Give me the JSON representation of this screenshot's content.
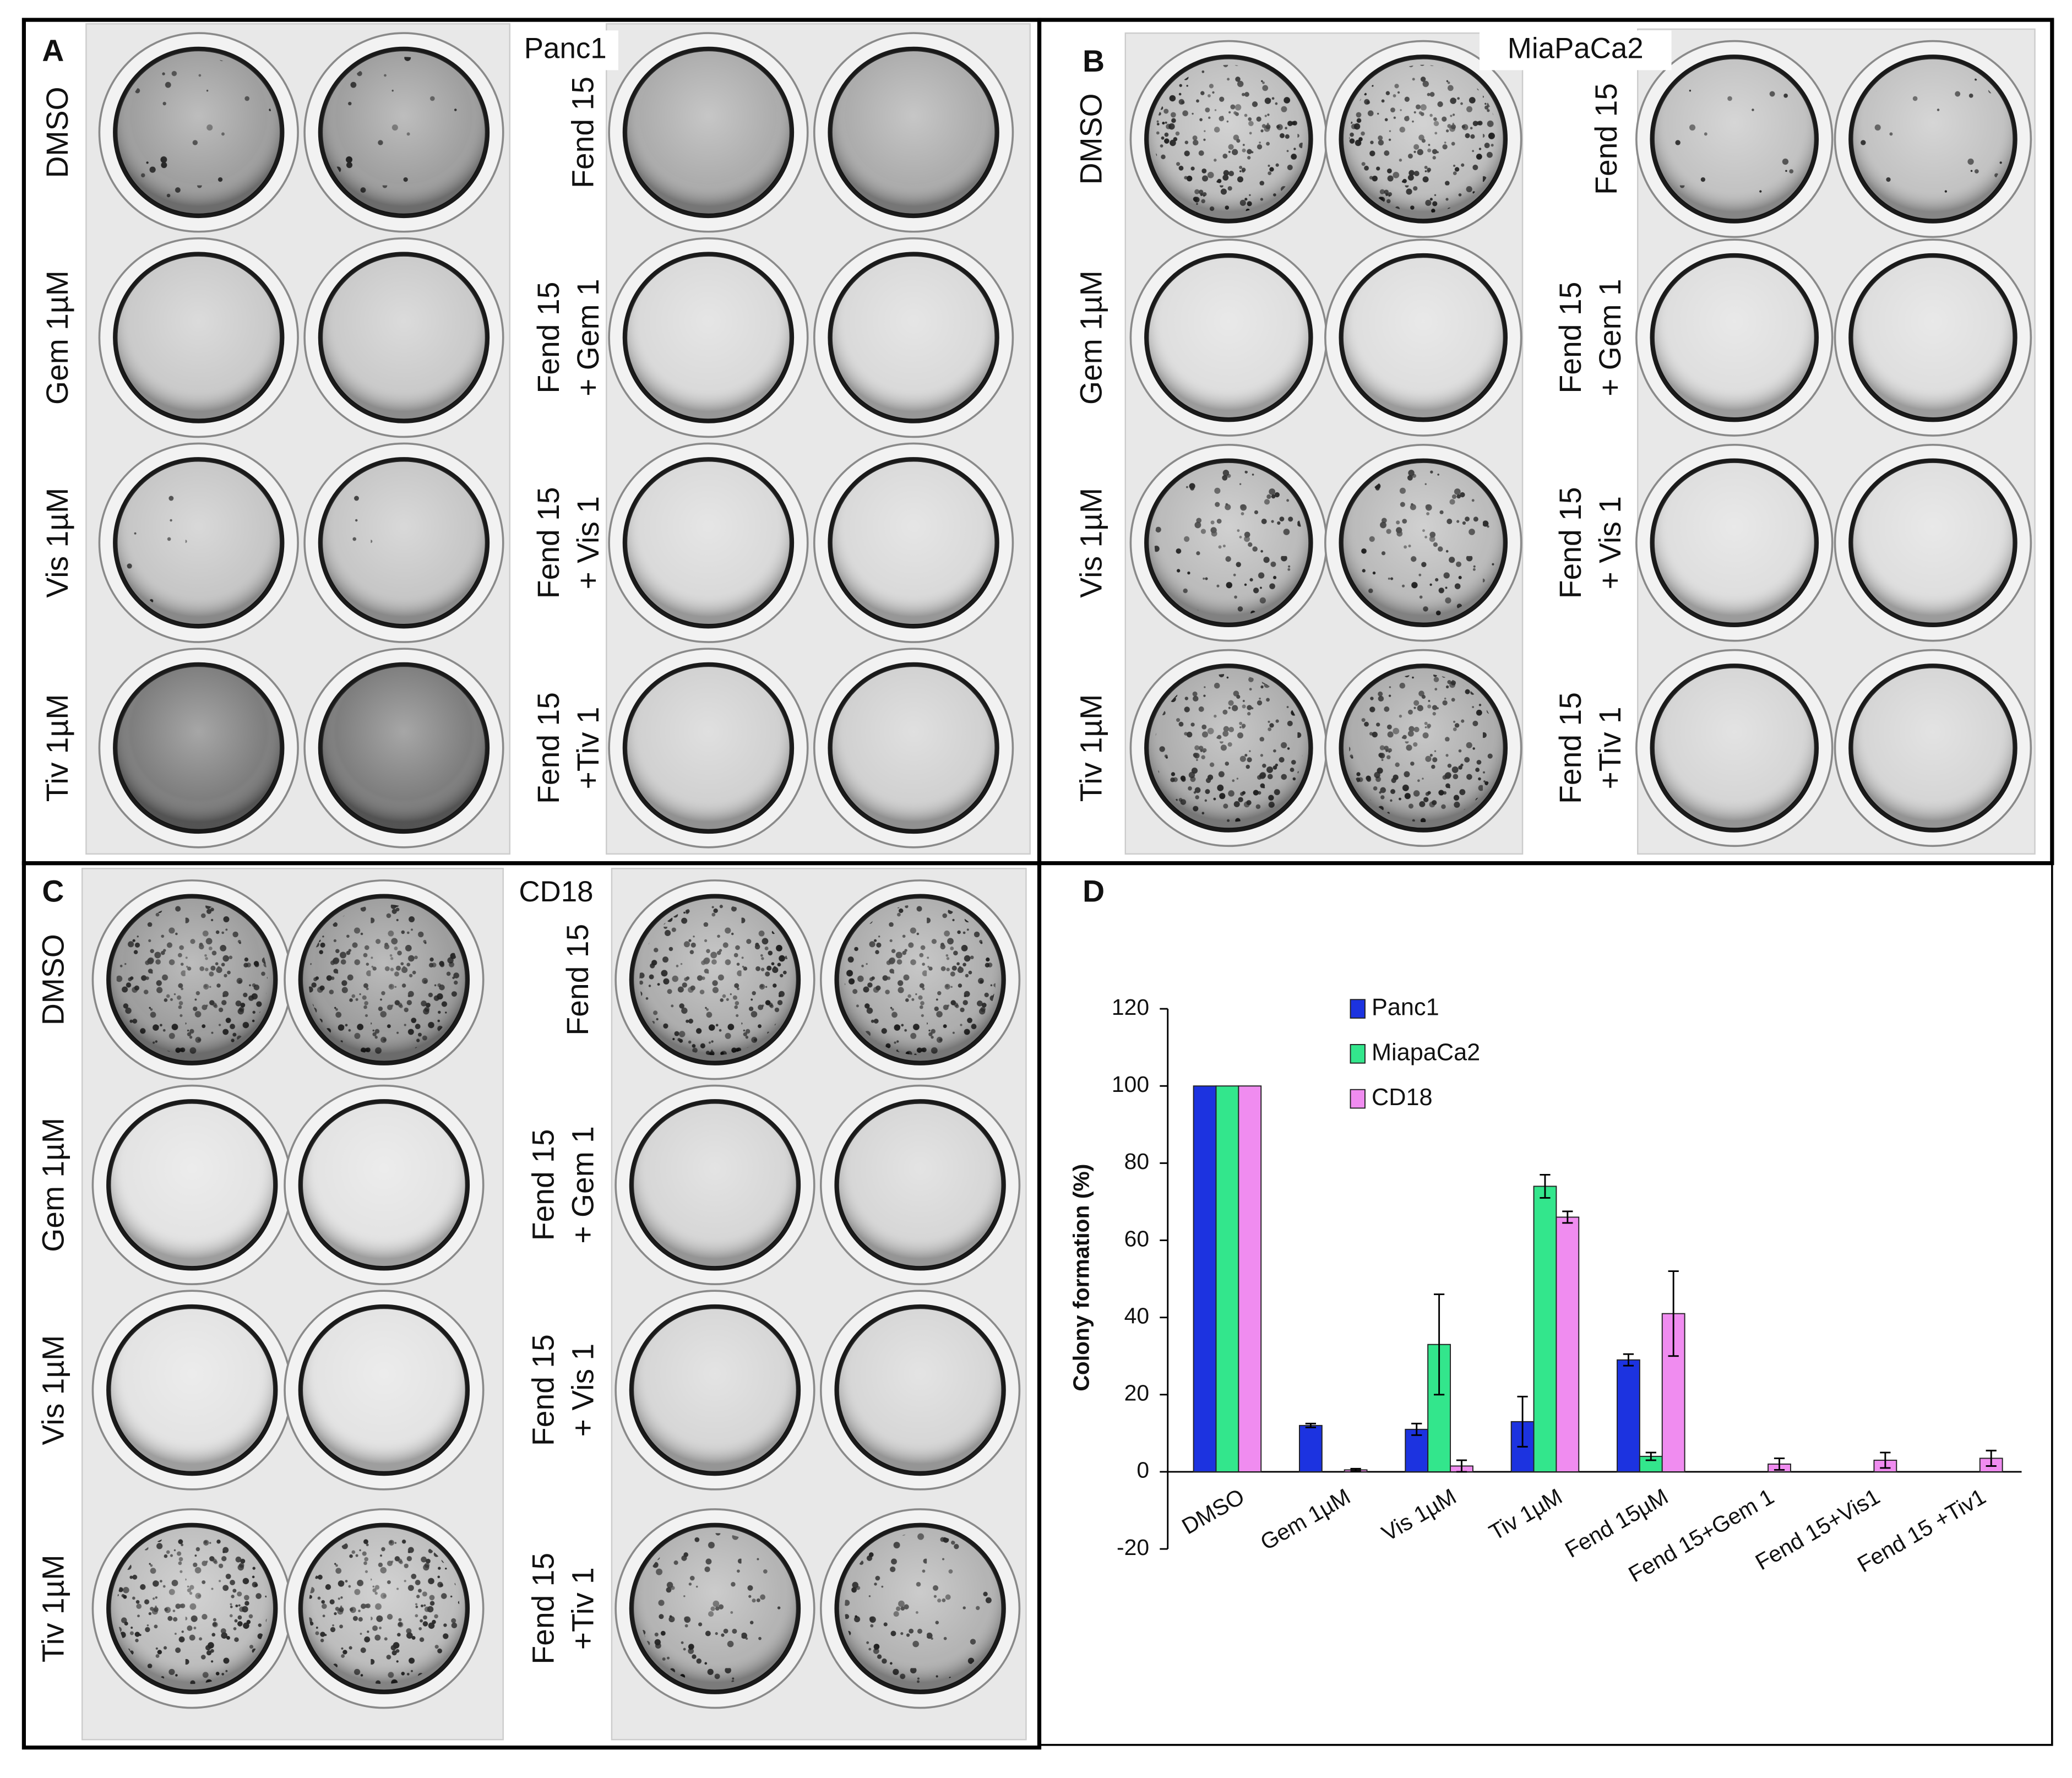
{
  "panels": [
    {
      "letter": "A",
      "title": "Panc1",
      "left_labels": [
        "DMSO",
        "Gem 1µM",
        "Vis 1µM",
        "Tiv 1µM"
      ],
      "right_labels": [
        [
          "Fend 15"
        ],
        [
          "Fend 15",
          "+ Gem 1"
        ],
        [
          "Fend 15",
          "+ Vis 1"
        ],
        [
          "Fend 15",
          "+Tiv 1"
        ]
      ]
    },
    {
      "letter": "B",
      "title": "MiaPaCa2",
      "left_labels": [
        "DMSO",
        "Gem 1µM",
        "Vis 1µM",
        "Tiv 1µM"
      ],
      "right_labels": [
        [
          "Fend 15"
        ],
        [
          "Fend 15",
          "+ Gem 1"
        ],
        [
          "Fend 15",
          "+ Vis 1"
        ],
        [
          "Fend 15",
          "+Tiv 1"
        ]
      ]
    },
    {
      "letter": "C",
      "title": "CD18",
      "left_labels": [
        "DMSO",
        "Gem 1µM",
        "Vis 1µM",
        "Tiv 1µM"
      ],
      "right_labels": [
        [
          "Fend 15"
        ],
        [
          "Fend 15",
          "+ Gem 1"
        ],
        [
          "Fend 15",
          "+ Vis 1"
        ],
        [
          "Fend 15",
          "+Tiv 1"
        ]
      ]
    }
  ],
  "chart_data": {
    "type": "bar",
    "panel_letter": "D",
    "y_label": "Colony formation (%)",
    "categories": [
      "DMSO",
      "Gem 1µM",
      "Vis 1µM",
      "Tiv 1µM",
      "Fend 15µM",
      "Fend 15+Gem 1",
      "Fend 15+Vis1",
      "Fend 15 +Tiv1"
    ],
    "series": [
      {
        "name": "Panc1",
        "color": "#1c33e0",
        "values": [
          100,
          12,
          11,
          13,
          29,
          0,
          0,
          0
        ],
        "errors": [
          0,
          0.5,
          1.5,
          6.5,
          1.5,
          0,
          0,
          0
        ]
      },
      {
        "name": "MiapaCa2",
        "color": "#33e68c",
        "values": [
          100,
          0,
          33,
          74,
          4,
          0,
          0,
          0
        ],
        "errors": [
          0,
          0,
          13,
          3,
          1,
          0,
          0,
          0
        ]
      },
      {
        "name": "CD18",
        "color": "#f08cf0",
        "values": [
          100,
          0.5,
          1.5,
          66,
          41,
          2,
          3,
          3.5
        ],
        "errors": [
          0,
          0.3,
          1.5,
          1.5,
          11,
          1.5,
          2,
          2
        ]
      }
    ],
    "ylim": [
      -20,
      120
    ],
    "yticks": [
      -20,
      0,
      20,
      40,
      60,
      80,
      100,
      120
    ]
  }
}
